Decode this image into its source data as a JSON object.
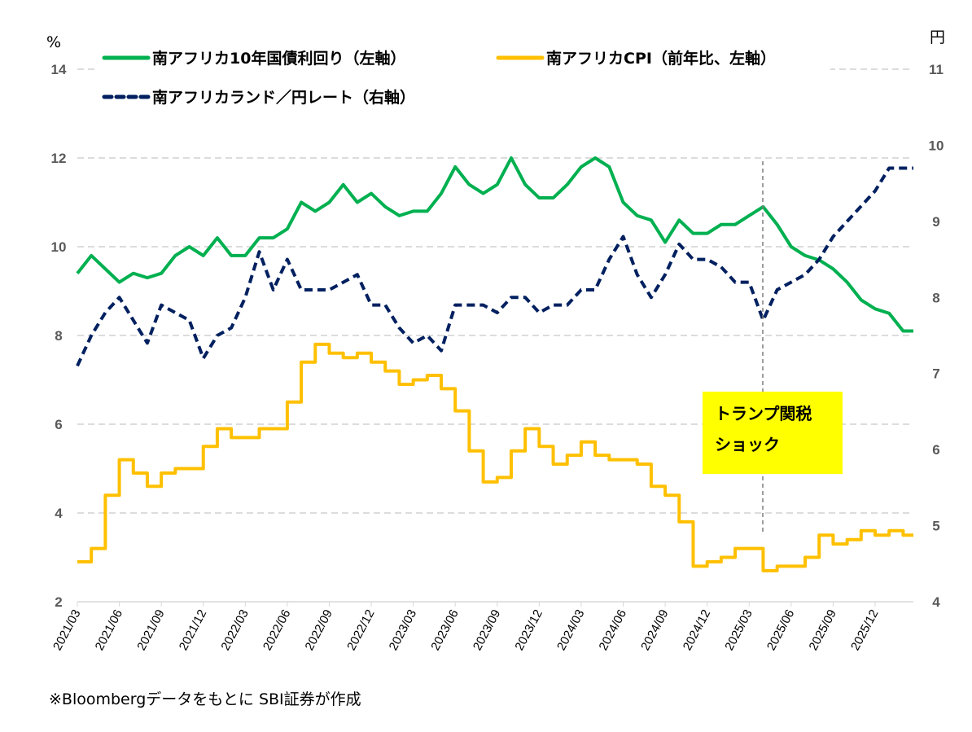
{
  "chart_data": {
    "type": "line",
    "left_axis": {
      "unit": "%",
      "ylim": [
        2,
        14
      ],
      "ticks": [
        "2",
        "4",
        "6",
        "8",
        "10",
        "12",
        "14"
      ]
    },
    "right_axis": {
      "unit": "円",
      "ylim": [
        4,
        11
      ],
      "ticks": [
        "4",
        "5",
        "6",
        "7",
        "8",
        "9",
        "10",
        "11"
      ]
    },
    "x_ticks": [
      "2021/03",
      "2021/06",
      "2021/09",
      "2021/12",
      "2022/03",
      "2022/06",
      "2022/09",
      "2022/12",
      "2023/03",
      "2023/06",
      "2023/09",
      "2023/12",
      "2024/03",
      "2024/06",
      "2024/09",
      "2024/12",
      "2025/03",
      "2025/06",
      "2025/09",
      "2025/12"
    ],
    "x_start": "2021/03",
    "grid": true,
    "legend_position": "top",
    "series": [
      {
        "name": "南アフリカ10年国債利回り（左軸）",
        "axis": "left",
        "color": "#00B050",
        "style": "solid",
        "values": [
          9.4,
          9.8,
          9.5,
          9.2,
          9.4,
          9.3,
          9.4,
          9.8,
          10.0,
          9.8,
          10.2,
          9.8,
          9.8,
          10.2,
          10.2,
          10.4,
          11.0,
          10.8,
          11.0,
          11.4,
          11.0,
          11.2,
          10.9,
          10.7,
          10.8,
          10.8,
          11.2,
          11.8,
          11.4,
          11.2,
          11.4,
          12.0,
          11.4,
          11.1,
          11.1,
          11.4,
          11.8,
          12.0,
          11.8,
          11.0,
          10.7,
          10.6,
          10.1,
          10.6,
          10.3,
          10.3,
          10.5,
          10.5,
          10.7,
          10.9,
          10.5,
          10.0,
          9.8,
          9.7,
          9.5,
          9.2,
          8.8,
          8.6,
          8.5,
          8.1
        ]
      },
      {
        "name": "南アフリカCPI（前年比、左軸）",
        "axis": "left",
        "color": "#FFC000",
        "style": "step",
        "values": [
          2.9,
          3.2,
          4.4,
          5.2,
          4.9,
          4.6,
          4.9,
          5.0,
          5.0,
          5.5,
          5.9,
          5.7,
          5.7,
          5.9,
          5.9,
          6.5,
          7.4,
          7.8,
          7.6,
          7.5,
          7.6,
          7.4,
          7.2,
          6.9,
          7.0,
          7.1,
          6.8,
          6.3,
          5.4,
          4.7,
          4.8,
          5.4,
          5.9,
          5.5,
          5.1,
          5.3,
          5.6,
          5.3,
          5.2,
          5.2,
          5.1,
          4.6,
          4.4,
          3.8,
          2.8,
          2.9,
          3.0,
          3.2,
          3.2,
          2.7,
          2.8,
          2.8,
          3.0,
          3.5,
          3.3,
          3.4,
          3.6,
          3.5,
          3.6,
          3.5
        ]
      },
      {
        "name": "南アフリカランド／円レート（右軸）",
        "axis": "right",
        "color": "#002060",
        "style": "dashed",
        "values": [
          7.1,
          7.5,
          7.8,
          8.0,
          7.7,
          7.4,
          7.9,
          7.8,
          7.7,
          7.2,
          7.5,
          7.6,
          8.0,
          8.6,
          8.1,
          8.5,
          8.1,
          8.1,
          8.1,
          8.2,
          8.3,
          7.9,
          7.9,
          7.6,
          7.4,
          7.5,
          7.3,
          7.9,
          7.9,
          7.9,
          7.8,
          8.0,
          8.0,
          7.8,
          7.9,
          7.9,
          8.1,
          8.1,
          8.5,
          8.8,
          8.3,
          8.0,
          8.3,
          8.7,
          8.5,
          8.5,
          8.4,
          8.2,
          8.2,
          7.7,
          8.1,
          8.2,
          8.3,
          8.5,
          8.8,
          9.0,
          9.2,
          9.4,
          9.7,
          9.7
        ]
      }
    ],
    "annotation": {
      "text_lines": [
        "トランプ関税",
        "ショック"
      ],
      "at": "2025/04",
      "color": "#FFFF00"
    }
  },
  "note": "※Bloombergデータをもとに SBI証券が作成"
}
